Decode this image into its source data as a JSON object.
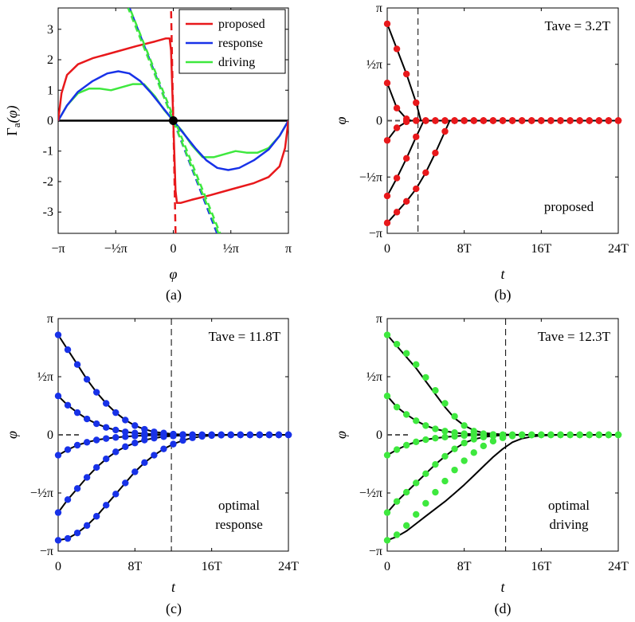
{
  "colors": {
    "proposed": "#e8181b",
    "response": "#1832e8",
    "driving": "#3ee83e",
    "axis": "#000000",
    "reference": "#555555"
  },
  "chart_data": [
    {
      "id": "a",
      "type": "line",
      "caption": "(a)",
      "xlabel": "φ",
      "ylabel": "Γa(φ)",
      "ylabel_main": "Γ",
      "ylabel_sub": "a",
      "ylabel_arg": "(φ)",
      "xlim": [
        -3.1416,
        3.1416
      ],
      "ylim": [
        -3.7,
        3.7
      ],
      "x_ticks": [
        {
          "value": -3.1416,
          "label": "−π"
        },
        {
          "value": -1.5708,
          "label": "−½π"
        },
        {
          "value": 0,
          "label": "0"
        },
        {
          "value": 1.5708,
          "label": "½π"
        },
        {
          "value": 3.1416,
          "label": "π"
        }
      ],
      "y_ticks": [
        {
          "value": 3,
          "label": "3"
        },
        {
          "value": 2,
          "label": "2"
        },
        {
          "value": 1,
          "label": "1"
        },
        {
          "value": 0,
          "label": "0"
        },
        {
          "value": -1,
          "label": "-1"
        },
        {
          "value": -2,
          "label": "-2"
        },
        {
          "value": -3,
          "label": "-3"
        }
      ],
      "legend": {
        "position": "top-right",
        "entries": [
          "proposed",
          "response",
          "driving"
        ]
      },
      "series": [
        {
          "name": "proposed",
          "color_key": "proposed",
          "x": [
            -3.1416,
            -3.05,
            -2.9,
            -2.6,
            -2.2,
            -1.6,
            -1.0,
            -0.5,
            -0.2,
            -0.1,
            -0.06,
            0,
            0.06,
            0.1,
            0.2,
            0.5,
            1.0,
            1.6,
            2.2,
            2.6,
            2.9,
            3.05,
            3.1416
          ],
          "y": [
            0,
            0.9,
            1.5,
            1.85,
            2.05,
            2.25,
            2.45,
            2.6,
            2.7,
            2.7,
            2.3,
            0,
            -2.3,
            -2.7,
            -2.7,
            -2.6,
            -2.45,
            -2.25,
            -2.05,
            -1.85,
            -1.5,
            -0.9,
            0
          ]
        },
        {
          "name": "response",
          "color_key": "response",
          "x": [
            -3.1416,
            -2.9,
            -2.6,
            -2.2,
            -1.8,
            -1.5,
            -1.2,
            -0.9,
            -0.6,
            -0.3,
            0,
            0.3,
            0.6,
            0.9,
            1.2,
            1.5,
            1.8,
            2.2,
            2.6,
            2.9,
            3.1416
          ],
          "y": [
            0,
            0.5,
            0.95,
            1.3,
            1.55,
            1.62,
            1.55,
            1.3,
            0.9,
            0.45,
            0,
            -0.45,
            -0.9,
            -1.3,
            -1.55,
            -1.62,
            -1.55,
            -1.3,
            -0.95,
            -0.5,
            0
          ]
        },
        {
          "name": "driving",
          "color_key": "driving",
          "x": [
            -3.1416,
            -2.9,
            -2.6,
            -2.3,
            -2.0,
            -1.7,
            -1.4,
            -1.1,
            -0.8,
            -0.5,
            -0.25,
            0,
            0.25,
            0.5,
            0.8,
            1.1,
            1.4,
            1.7,
            2.0,
            2.3,
            2.6,
            2.9,
            3.1416
          ],
          "y": [
            0,
            0.5,
            0.9,
            1.05,
            1.05,
            1.0,
            1.1,
            1.2,
            1.2,
            0.8,
            0.35,
            0,
            -0.35,
            -0.8,
            -1.2,
            -1.2,
            -1.1,
            -1.0,
            -1.05,
            -1.05,
            -0.9,
            -0.5,
            0
          ]
        }
      ],
      "tangent_lines": [
        {
          "name": "proposed slope",
          "color_key": "proposed",
          "slope": -60
        },
        {
          "name": "response slope",
          "color_key": "response",
          "slope": -3.1
        },
        {
          "name": "driving slope",
          "color_key": "driving",
          "slope": -3.0
        }
      ],
      "fixed_point": {
        "x": 0,
        "y": 0
      }
    },
    {
      "id": "b",
      "type": "line",
      "caption": "(b)",
      "xlabel": "t",
      "ylabel": "φ",
      "xlim": [
        0,
        24
      ],
      "ylim": [
        -3.1416,
        3.1416
      ],
      "x_ticks": [
        {
          "value": 0,
          "label": "0"
        },
        {
          "value": 8,
          "label": "8T"
        },
        {
          "value": 16,
          "label": "16T"
        },
        {
          "value": 24,
          "label": "24T"
        }
      ],
      "y_ticks": [
        {
          "value": 3.1416,
          "label": "π"
        },
        {
          "value": 1.5708,
          "label": "½π"
        },
        {
          "value": 0,
          "label": "0"
        },
        {
          "value": -1.5708,
          "label": "−½π"
        },
        {
          "value": -3.1416,
          "label": "−π"
        }
      ],
      "t_ave_label": "Tave = 3.2T",
      "t_ave_value": 3.2,
      "annotation": [
        "proposed"
      ],
      "color_key": "proposed",
      "dot_spacing": 1,
      "curves": [
        {
          "t": [
            0,
            1,
            2,
            3,
            3.5,
            24
          ],
          "phi": [
            2.7,
            2.0,
            1.3,
            0.5,
            0,
            0
          ]
        },
        {
          "t": [
            0,
            1,
            2,
            2.5,
            24
          ],
          "phi": [
            1.05,
            0.35,
            0.05,
            0,
            0
          ]
        },
        {
          "t": [
            0,
            1,
            2,
            2.5,
            24
          ],
          "phi": [
            -0.55,
            -0.2,
            -0.03,
            0,
            0
          ]
        },
        {
          "t": [
            0,
            1,
            2,
            3,
            3.8,
            24
          ],
          "phi": [
            -2.1,
            -1.6,
            -1.05,
            -0.45,
            0,
            0
          ]
        },
        {
          "t": [
            0,
            1,
            2,
            3,
            4,
            5,
            6,
            6.5,
            24
          ],
          "phi": [
            -2.85,
            -2.55,
            -2.25,
            -1.9,
            -1.45,
            -0.9,
            -0.3,
            0,
            0
          ]
        }
      ]
    },
    {
      "id": "c",
      "type": "line",
      "caption": "(c)",
      "xlabel": "t",
      "ylabel": "φ",
      "xlim": [
        0,
        24
      ],
      "ylim": [
        -3.1416,
        3.1416
      ],
      "x_ticks": [
        {
          "value": 0,
          "label": "0"
        },
        {
          "value": 8,
          "label": "8T"
        },
        {
          "value": 16,
          "label": "16T"
        },
        {
          "value": 24,
          "label": "24T"
        }
      ],
      "y_ticks": [
        {
          "value": 3.1416,
          "label": "π"
        },
        {
          "value": 1.5708,
          "label": "½π"
        },
        {
          "value": 0,
          "label": "0"
        },
        {
          "value": -1.5708,
          "label": "−½π"
        },
        {
          "value": -3.1416,
          "label": "−π"
        }
      ],
      "t_ave_label": "Tave = 11.8T",
      "t_ave_value": 11.8,
      "annotation": [
        "optimal",
        "response"
      ],
      "color_key": "response",
      "dot_spacing": 1,
      "curves": [
        {
          "t": [
            0,
            1,
            2,
            3,
            4,
            5,
            6,
            7,
            8,
            9,
            10,
            12,
            14,
            24
          ],
          "phi": [
            2.7,
            2.3,
            1.9,
            1.5,
            1.15,
            0.85,
            0.6,
            0.4,
            0.25,
            0.15,
            0.08,
            0.02,
            0,
            0
          ]
        },
        {
          "t": [
            0,
            1,
            2,
            3,
            4,
            5,
            6,
            7,
            8,
            9,
            10,
            12,
            14,
            24
          ],
          "phi": [
            1.05,
            0.8,
            0.6,
            0.43,
            0.3,
            0.2,
            0.13,
            0.08,
            0.05,
            0.03,
            0.02,
            0.01,
            0,
            0
          ]
        },
        {
          "t": [
            0,
            1,
            2,
            3,
            4,
            5,
            6,
            7,
            8,
            9,
            10,
            12,
            14,
            24
          ],
          "phi": [
            -0.55,
            -0.4,
            -0.28,
            -0.2,
            -0.14,
            -0.1,
            -0.07,
            -0.05,
            -0.03,
            -0.02,
            -0.01,
            0,
            0,
            0
          ]
        },
        {
          "t": [
            0,
            1,
            2,
            3,
            4,
            5,
            6,
            7,
            8,
            9,
            10,
            11,
            12,
            14,
            24
          ],
          "phi": [
            -2.1,
            -1.75,
            -1.45,
            -1.15,
            -0.88,
            -0.65,
            -0.46,
            -0.32,
            -0.22,
            -0.14,
            -0.09,
            -0.05,
            -0.03,
            0,
            0
          ]
        },
        {
          "t": [
            0,
            1,
            2,
            3,
            4,
            5,
            6,
            7,
            8,
            9,
            10,
            11,
            12,
            13,
            14,
            15,
            16,
            18,
            24
          ],
          "phi": [
            -2.85,
            -2.8,
            -2.65,
            -2.45,
            -2.2,
            -1.9,
            -1.6,
            -1.3,
            -1.0,
            -0.75,
            -0.55,
            -0.38,
            -0.25,
            -0.15,
            -0.08,
            -0.04,
            -0.02,
            0,
            0
          ]
        }
      ]
    },
    {
      "id": "d",
      "type": "line",
      "caption": "(d)",
      "xlabel": "t",
      "ylabel": "φ",
      "xlim": [
        0,
        24
      ],
      "ylim": [
        -3.1416,
        3.1416
      ],
      "x_ticks": [
        {
          "value": 0,
          "label": "0"
        },
        {
          "value": 8,
          "label": "8T"
        },
        {
          "value": 16,
          "label": "16T"
        },
        {
          "value": 24,
          "label": "24T"
        }
      ],
      "y_ticks": [
        {
          "value": 3.1416,
          "label": "π"
        },
        {
          "value": 1.5708,
          "label": "½π"
        },
        {
          "value": 0,
          "label": "0"
        },
        {
          "value": -1.5708,
          "label": "−½π"
        },
        {
          "value": -3.1416,
          "label": "−π"
        }
      ],
      "t_ave_label": "Tave = 12.3T",
      "t_ave_value": 12.3,
      "annotation": [
        "optimal",
        "driving"
      ],
      "color_key": "driving",
      "dot_spacing": 1,
      "curves": [
        {
          "t": [
            0,
            1,
            2,
            3,
            4,
            5,
            6,
            7,
            8,
            9,
            10,
            12,
            14,
            24
          ],
          "phi": [
            2.7,
            2.4,
            2.1,
            1.8,
            1.45,
            1.1,
            0.75,
            0.45,
            0.25,
            0.12,
            0.05,
            0.01,
            0,
            0
          ],
          "dots": {
            "t": [
              0,
              1,
              2,
              3,
              4,
              5,
              6,
              7,
              8,
              9,
              10,
              11,
              12,
              14,
              24
            ],
            "phi": [
              2.7,
              2.45,
              2.2,
              1.9,
              1.55,
              1.2,
              0.85,
              0.5,
              0.25,
              0.1,
              0.03,
              0.01,
              0,
              0,
              0
            ]
          }
        },
        {
          "t": [
            0,
            1,
            2,
            3,
            4,
            5,
            6,
            7,
            8,
            9,
            10,
            12,
            14,
            24
          ],
          "phi": [
            1.05,
            0.75,
            0.55,
            0.38,
            0.25,
            0.16,
            0.1,
            0.06,
            0.03,
            0.02,
            0.01,
            0,
            0,
            0
          ]
        },
        {
          "t": [
            0,
            1,
            2,
            3,
            4,
            5,
            6,
            7,
            8,
            9,
            10,
            12,
            14,
            24
          ],
          "phi": [
            -0.55,
            -0.4,
            -0.28,
            -0.19,
            -0.13,
            -0.09,
            -0.06,
            -0.04,
            -0.02,
            -0.01,
            0,
            0,
            0,
            0
          ]
        },
        {
          "t": [
            0,
            1,
            2,
            3,
            4,
            5,
            6,
            7,
            8,
            9,
            10,
            11,
            12,
            14,
            24
          ],
          "phi": [
            -2.1,
            -1.8,
            -1.55,
            -1.3,
            -1.05,
            -0.8,
            -0.58,
            -0.38,
            -0.22,
            -0.12,
            -0.06,
            -0.03,
            -0.01,
            0,
            0
          ]
        },
        {
          "t": [
            0,
            1,
            2,
            3,
            4,
            5,
            6,
            7,
            8,
            9,
            10,
            11,
            12,
            13,
            14,
            15,
            16,
            18,
            24
          ],
          "phi": [
            -2.85,
            -2.75,
            -2.6,
            -2.4,
            -2.2,
            -2.0,
            -1.8,
            -1.58,
            -1.35,
            -1.1,
            -0.85,
            -0.6,
            -0.38,
            -0.2,
            -0.1,
            -0.05,
            -0.02,
            0,
            0
          ],
          "dots": {
            "t": [
              0,
              1,
              2,
              3,
              4,
              5,
              6,
              7,
              8,
              9,
              10,
              11,
              12,
              13,
              14,
              16,
              24
            ],
            "phi": [
              -2.85,
              -2.7,
              -2.45,
              -2.15,
              -1.85,
              -1.55,
              -1.25,
              -0.95,
              -0.7,
              -0.48,
              -0.3,
              -0.17,
              -0.08,
              -0.03,
              -0.01,
              0,
              0
            ]
          }
        }
      ]
    }
  ]
}
